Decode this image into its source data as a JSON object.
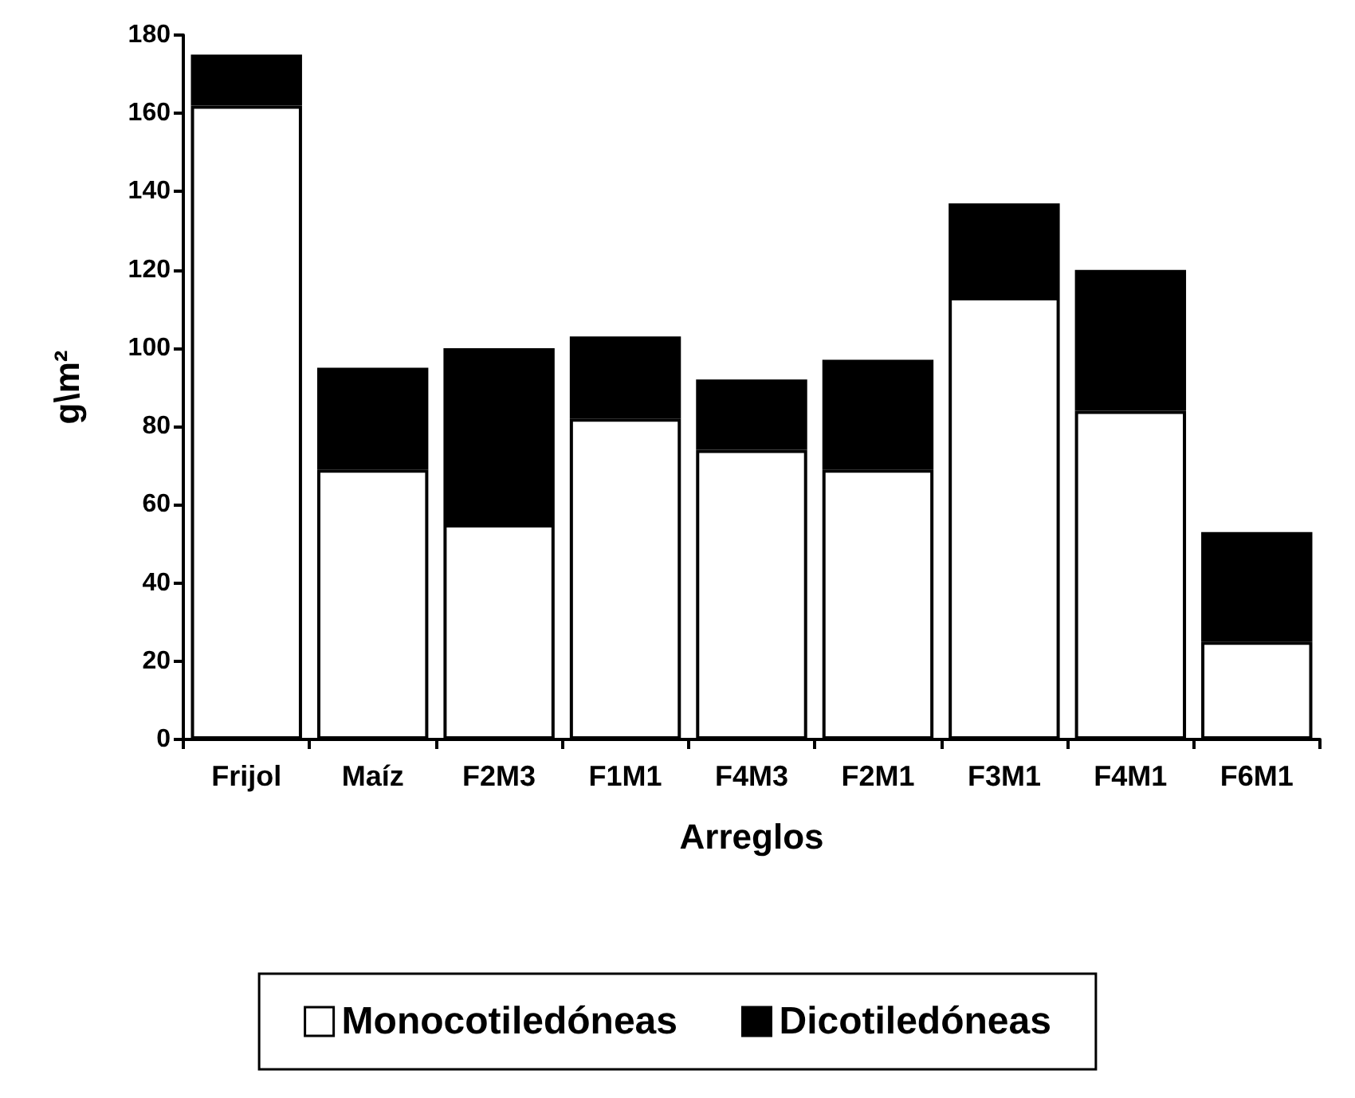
{
  "chart_data": {
    "type": "bar",
    "stacked": true,
    "xlabel": "Arreglos",
    "ylabel": "g\\m²",
    "categories": [
      "Frijol",
      "Maíz",
      "F2M3",
      "F1M1",
      "F4M3",
      "F2M1",
      "F3M1",
      "F4M1",
      "F6M1"
    ],
    "series": [
      {
        "name": "Monocotiledóneas",
        "color": "#ffffff",
        "values": [
          162,
          69,
          55,
          82,
          74,
          69,
          113,
          84,
          25
        ]
      },
      {
        "name": "Dicotiledóneas",
        "color": "#000000",
        "values": [
          13,
          26,
          45,
          21,
          18,
          28,
          24,
          36,
          28
        ]
      }
    ],
    "ylim": [
      0,
      180
    ],
    "yticks": [
      0,
      20,
      40,
      60,
      80,
      100,
      120,
      140,
      160,
      180
    ],
    "grid": false,
    "legend": "bottom"
  }
}
